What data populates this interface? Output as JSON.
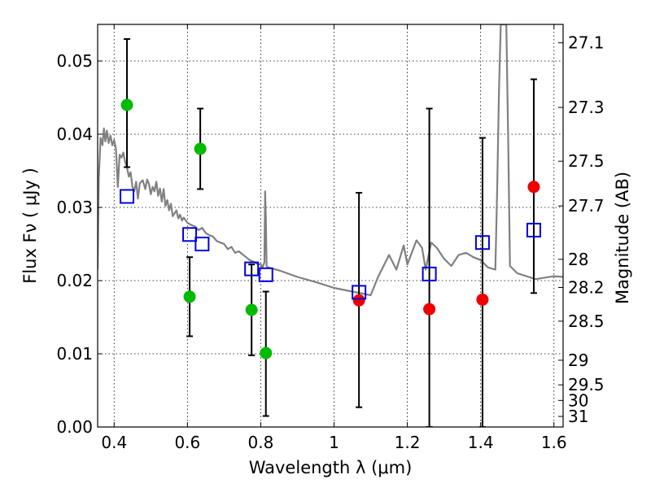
{
  "chart_data": {
    "type": "scatter",
    "title": "",
    "xlabel": "Wavelength  λ (μm)",
    "ylabel": "Flux  Fν  ( μJy )",
    "ylabel_right": "Magnitude (AB)",
    "xlim": [
      0.355,
      1.625
    ],
    "ylim": [
      0.0,
      0.055
    ],
    "grid": true,
    "x_ticks": [
      {
        "value": 0.4,
        "label": "0.4"
      },
      {
        "value": 0.6,
        "label": "0.6"
      },
      {
        "value": 0.8,
        "label": "0.8"
      },
      {
        "value": 1.0,
        "label": "1"
      },
      {
        "value": 1.2,
        "label": "1.2"
      },
      {
        "value": 1.4,
        "label": "1.4"
      },
      {
        "value": 1.6,
        "label": "1.6"
      }
    ],
    "y_ticks": [
      {
        "value": 0.0,
        "label": "0.00"
      },
      {
        "value": 0.01,
        "label": "0.01"
      },
      {
        "value": 0.02,
        "label": "0.02"
      },
      {
        "value": 0.03,
        "label": "0.03"
      },
      {
        "value": 0.04,
        "label": "0.04"
      },
      {
        "value": 0.05,
        "label": "0.05"
      }
    ],
    "right_ticks": [
      {
        "mag": 27.1,
        "label": "27.1"
      },
      {
        "mag": 27.3,
        "label": "27.3"
      },
      {
        "mag": 27.5,
        "label": "27.5"
      },
      {
        "mag": 27.7,
        "label": "27.7"
      },
      {
        "mag": 28.0,
        "label": "28"
      },
      {
        "mag": 28.2,
        "label": "28.2"
      },
      {
        "mag": 28.5,
        "label": "28.5"
      },
      {
        "mag": 29.0,
        "label": "29"
      },
      {
        "mag": 29.5,
        "label": "29.5"
      },
      {
        "mag": 30.0,
        "label": "30"
      },
      {
        "mag": 31.0,
        "label": "31"
      }
    ],
    "colors": {
      "model": "#808080",
      "optical": "#00bb00",
      "infrared": "#ee0000",
      "model_flux": "#0000dd",
      "errorbar": "#000000"
    },
    "series": [
      {
        "kind": "line",
        "points": [
          [
            0.355,
            0.0215
          ],
          [
            0.358,
            0.034
          ],
          [
            0.363,
            0.0395
          ],
          [
            0.368,
            0.0385
          ],
          [
            0.372,
            0.0408
          ],
          [
            0.376,
            0.039
          ],
          [
            0.38,
            0.0405
          ],
          [
            0.385,
            0.0388
          ],
          [
            0.39,
            0.0398
          ],
          [
            0.395,
            0.0385
          ],
          [
            0.4,
            0.0392
          ],
          [
            0.405,
            0.038
          ],
          [
            0.41,
            0.0328
          ],
          [
            0.415,
            0.0372
          ],
          [
            0.42,
            0.0368
          ],
          [
            0.425,
            0.0375
          ],
          [
            0.43,
            0.0362
          ],
          [
            0.435,
            0.0355
          ],
          [
            0.44,
            0.0342
          ],
          [
            0.445,
            0.0348
          ],
          [
            0.45,
            0.0328
          ],
          [
            0.455,
            0.0322
          ],
          [
            0.46,
            0.0335
          ],
          [
            0.465,
            0.0312
          ],
          [
            0.47,
            0.0333
          ],
          [
            0.478,
            0.0337
          ],
          [
            0.485,
            0.0325
          ],
          [
            0.49,
            0.0338
          ],
          [
            0.495,
            0.0332
          ],
          [
            0.5,
            0.0318
          ],
          [
            0.505,
            0.0328
          ],
          [
            0.51,
            0.0322
          ],
          [
            0.515,
            0.0335
          ],
          [
            0.52,
            0.0316
          ],
          [
            0.525,
            0.0326
          ],
          [
            0.53,
            0.0308
          ],
          [
            0.535,
            0.0325
          ],
          [
            0.54,
            0.0302
          ],
          [
            0.545,
            0.031
          ],
          [
            0.55,
            0.0296
          ],
          [
            0.555,
            0.0305
          ],
          [
            0.56,
            0.0288
          ],
          [
            0.565,
            0.0292
          ],
          [
            0.57,
            0.0296
          ],
          [
            0.575,
            0.0285
          ],
          [
            0.58,
            0.029
          ],
          [
            0.585,
            0.0282
          ],
          [
            0.59,
            0.0286
          ],
          [
            0.6,
            0.0279
          ],
          [
            0.61,
            0.0276
          ],
          [
            0.62,
            0.0274
          ],
          [
            0.63,
            0.0269
          ],
          [
            0.64,
            0.0272
          ],
          [
            0.65,
            0.0265
          ],
          [
            0.66,
            0.0262
          ],
          [
            0.67,
            0.026
          ],
          [
            0.68,
            0.0254
          ],
          [
            0.69,
            0.0252
          ],
          [
            0.7,
            0.025
          ],
          [
            0.71,
            0.0243
          ],
          [
            0.72,
            0.0246
          ],
          [
            0.73,
            0.0238
          ],
          [
            0.74,
            0.024
          ],
          [
            0.75,
            0.0236
          ],
          [
            0.76,
            0.0232
          ],
          [
            0.77,
            0.0228
          ],
          [
            0.78,
            0.0226
          ],
          [
            0.79,
            0.0223
          ],
          [
            0.8,
            0.0222
          ],
          [
            0.805,
            0.0218
          ],
          [
            0.81,
            0.0225
          ],
          [
            0.812,
            0.0322
          ],
          [
            0.814,
            0.0285
          ],
          [
            0.816,
            0.022
          ],
          [
            0.82,
            0.0218
          ],
          [
            0.85,
            0.0214
          ],
          [
            0.9,
            0.0205
          ],
          [
            0.95,
            0.0198
          ],
          [
            1.0,
            0.019
          ],
          [
            1.05,
            0.0185
          ],
          [
            1.1,
            0.018
          ],
          [
            1.12,
            0.0205
          ],
          [
            1.15,
            0.0235
          ],
          [
            1.17,
            0.0215
          ],
          [
            1.19,
            0.0248
          ],
          [
            1.2,
            0.0222
          ],
          [
            1.225,
            0.0255
          ],
          [
            1.24,
            0.0245
          ],
          [
            1.25,
            0.0215
          ],
          [
            1.265,
            0.0252
          ],
          [
            1.28,
            0.0245
          ],
          [
            1.3,
            0.023
          ],
          [
            1.32,
            0.022
          ],
          [
            1.34,
            0.0235
          ],
          [
            1.36,
            0.0238
          ],
          [
            1.38,
            0.0232
          ],
          [
            1.4,
            0.0228
          ],
          [
            1.42,
            0.0218
          ],
          [
            1.44,
            0.0215
          ],
          [
            1.445,
            0.032
          ],
          [
            1.45,
            0.046
          ],
          [
            1.455,
            0.055
          ],
          [
            1.47,
            0.055
          ],
          [
            1.475,
            0.04
          ],
          [
            1.48,
            0.022
          ],
          [
            1.5,
            0.021
          ],
          [
            1.55,
            0.0202
          ],
          [
            1.6,
            0.0206
          ],
          [
            1.625,
            0.0205
          ]
        ]
      },
      {
        "kind": "points",
        "marker": "circle",
        "color_key": "optical",
        "points": [
          {
            "x": 0.435,
            "y": 0.044,
            "err": [
              0.0355,
              0.053
            ]
          },
          {
            "x": 0.606,
            "y": 0.0178,
            "err": [
              0.0124,
              0.0232
            ]
          },
          {
            "x": 0.635,
            "y": 0.038,
            "err": [
              0.0325,
              0.0435
            ]
          },
          {
            "x": 0.775,
            "y": 0.016,
            "err": [
              0.0098,
              0.0222
            ]
          },
          {
            "x": 0.814,
            "y": 0.0101,
            "err": [
              0.0015,
              0.0185
            ]
          }
        ]
      },
      {
        "kind": "points",
        "marker": "circle",
        "color_key": "infrared",
        "points": [
          {
            "x": 1.068,
            "y": 0.0173,
            "err": [
              0.0027,
              0.032
            ]
          },
          {
            "x": 1.26,
            "y": 0.0161,
            "err": [
              0.0,
              0.0435
            ]
          },
          {
            "x": 1.405,
            "y": 0.0174,
            "err": [
              0.0,
              0.0395
            ]
          },
          {
            "x": 1.545,
            "y": 0.0328,
            "err": [
              0.0183,
              0.0475
            ]
          }
        ]
      },
      {
        "kind": "points",
        "marker": "square",
        "color_key": "model_flux",
        "points": [
          {
            "x": 0.435,
            "y": 0.0315
          },
          {
            "x": 0.606,
            "y": 0.0263
          },
          {
            "x": 0.64,
            "y": 0.025
          },
          {
            "x": 0.775,
            "y": 0.0216
          },
          {
            "x": 0.814,
            "y": 0.0208
          },
          {
            "x": 1.068,
            "y": 0.0184
          },
          {
            "x": 1.26,
            "y": 0.0209
          },
          {
            "x": 1.405,
            "y": 0.0252
          },
          {
            "x": 1.545,
            "y": 0.0269
          }
        ]
      }
    ]
  }
}
